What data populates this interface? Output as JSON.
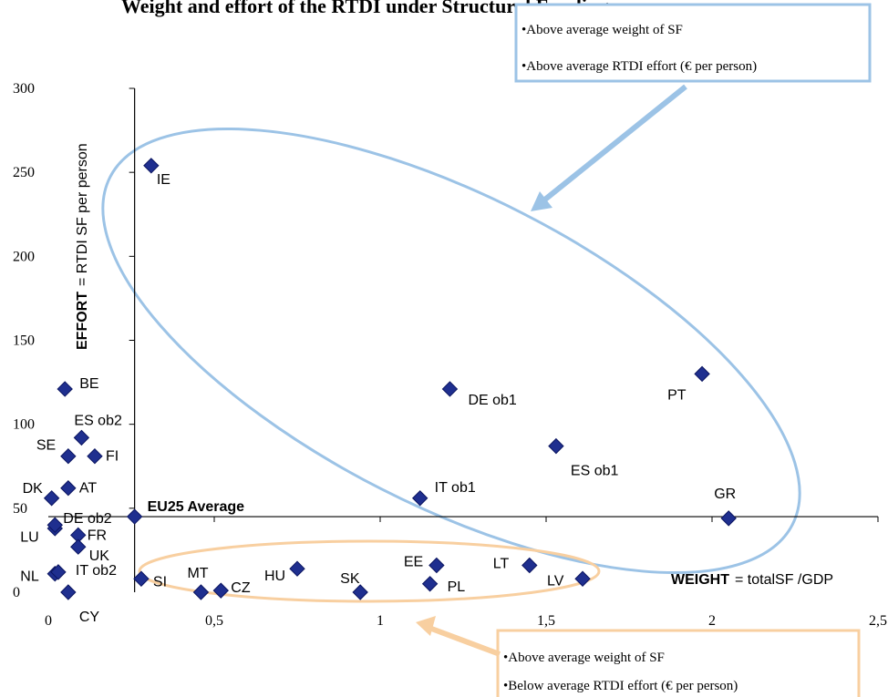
{
  "chart_data": {
    "type": "scatter",
    "title": "Weight and effort of the RTDI under Structural Funding",
    "x_axis": {
      "name_bold": "WEIGHT",
      "name_rest": "= totalSF /GDP",
      "ticks": [
        "0",
        "0,5",
        "1",
        "1,5",
        "2",
        "2,5"
      ],
      "tick_values": [
        0,
        0.5,
        1,
        1.5,
        2,
        2.5
      ],
      "range": [
        0,
        2.5
      ]
    },
    "y_axis": {
      "name_bold": "EFFORT",
      "name_rest": "= RTDI SF per person",
      "ticks": [
        "0",
        "50",
        "100",
        "150",
        "200",
        "250",
        "300"
      ],
      "tick_values": [
        0,
        50,
        100,
        150,
        200,
        250,
        300
      ],
      "range": [
        0,
        300
      ]
    },
    "average": {
      "label": "EU25 Average",
      "x": 0.26,
      "y": 45
    },
    "points": [
      {
        "label": "IE",
        "x": 0.31,
        "y": 254
      },
      {
        "label": "BE",
        "x": 0.05,
        "y": 121
      },
      {
        "label": "ES ob2",
        "x": 0.1,
        "y": 92
      },
      {
        "label": "SE",
        "x": 0.06,
        "y": 81
      },
      {
        "label": "FI",
        "x": 0.14,
        "y": 81
      },
      {
        "label": "AT",
        "x": 0.06,
        "y": 62
      },
      {
        "label": "DK",
        "x": 0.01,
        "y": 56
      },
      {
        "label": "DE ob2",
        "x": 0.02,
        "y": 38
      },
      {
        "label": "LU",
        "x": 0.02,
        "y": 40
      },
      {
        "label": "FR",
        "x": 0.09,
        "y": 34
      },
      {
        "label": "UK",
        "x": 0.09,
        "y": 27
      },
      {
        "label": "NL",
        "x": 0.02,
        "y": 11
      },
      {
        "label": "IT ob2",
        "x": 0.03,
        "y": 12
      },
      {
        "label": "CY",
        "x": 0.06,
        "y": 0
      },
      {
        "label": "SI",
        "x": 0.28,
        "y": 8
      },
      {
        "label": "MT",
        "x": 0.46,
        "y": 0
      },
      {
        "label": "CZ",
        "x": 0.52,
        "y": 1
      },
      {
        "label": "HU",
        "x": 0.75,
        "y": 14
      },
      {
        "label": "SK",
        "x": 0.94,
        "y": 0
      },
      {
        "label": "EE",
        "x": 1.17,
        "y": 16
      },
      {
        "label": "PL",
        "x": 1.15,
        "y": 5
      },
      {
        "label": "LT",
        "x": 1.45,
        "y": 16
      },
      {
        "label": "LV",
        "x": 1.61,
        "y": 8
      },
      {
        "label": "IT ob1",
        "x": 1.12,
        "y": 56
      },
      {
        "label": "DE ob1",
        "x": 1.21,
        "y": 121
      },
      {
        "label": "ES ob1",
        "x": 1.53,
        "y": 87
      },
      {
        "label": "PT",
        "x": 1.97,
        "y": 130
      },
      {
        "label": "GR",
        "x": 2.05,
        "y": 44
      }
    ],
    "annotations": [
      {
        "group": "upper",
        "lines": [
          "•Above average weight of SF",
          "•Above average RTDI effort (€ per person)"
        ],
        "color": "#9cc3e6"
      },
      {
        "group": "lower",
        "lines": [
          "•Above average weight of SF",
          "•Below average RTDI effort (€ per person)"
        ],
        "color": "#f8cfa0"
      }
    ],
    "marker_color": "#1f2f8f",
    "grid": false,
    "legend": "none"
  }
}
